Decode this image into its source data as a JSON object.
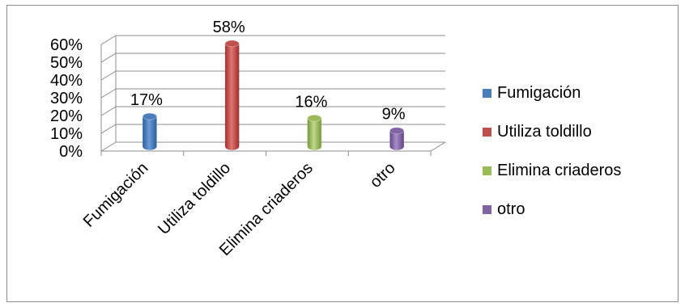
{
  "chart_data": {
    "type": "bar",
    "categories": [
      "Fumigación",
      "Utiliza toldillo",
      "Elimina criaderos",
      "otro"
    ],
    "values": [
      17,
      58,
      16,
      9
    ],
    "data_labels": [
      "17%",
      "58%",
      "16%",
      "9%"
    ],
    "colors": [
      "#4a7ebb",
      "#c0504d",
      "#9bbb59",
      "#8064a2"
    ],
    "ylim": [
      0,
      60
    ],
    "yticks": [
      "0%",
      "10%",
      "20%",
      "30%",
      "40%",
      "50%",
      "60%"
    ],
    "grid": true,
    "legend_position": "right",
    "legend": [
      "Fumigación",
      "Utiliza toldillo",
      "Elimina criaderos",
      "otro"
    ]
  }
}
